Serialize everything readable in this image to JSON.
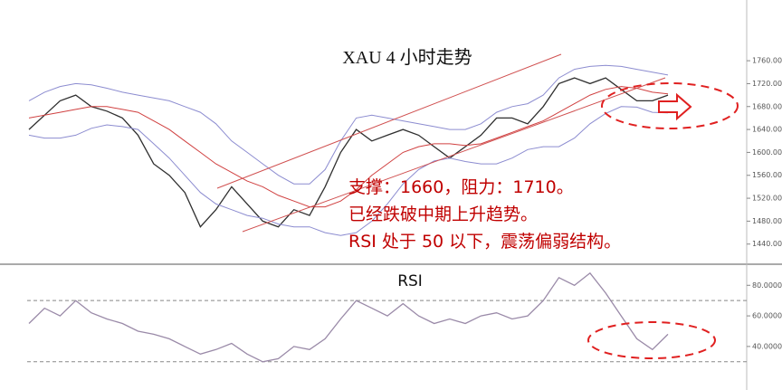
{
  "chart_data": [
    {
      "type": "line",
      "title": "XAU 4 小时走势",
      "annotations": [
        "支撑：1660，阻力：1710。",
        "已经跌破中期上升趋势。",
        "RSI 处于 50 以下，震荡偏弱结构。"
      ],
      "ylim": [
        1408,
        1787
      ],
      "yticks": [
        {
          "value": 1760,
          "label": "1760.00"
        },
        {
          "value": 1720,
          "label": "1720.00"
        },
        {
          "value": 1680,
          "label": "1680.00"
        },
        {
          "value": 1640,
          "label": "1640.00"
        },
        {
          "value": 1600,
          "label": "1600.00"
        },
        {
          "value": 1560,
          "label": "1560.00"
        },
        {
          "value": 1520,
          "label": "1520.00"
        },
        {
          "value": 1480,
          "label": "1480.00"
        },
        {
          "value": 1440,
          "label": "1440.00"
        }
      ],
      "series": [
        {
          "color": "#2f2f2f",
          "values": [
            1640,
            1665,
            1690,
            1700,
            1680,
            1672,
            1660,
            1630,
            1580,
            1560,
            1530,
            1470,
            1500,
            1540,
            1510,
            1480,
            1470,
            1500,
            1490,
            1540,
            1600,
            1640,
            1620,
            1630,
            1640,
            1630,
            1610,
            1590,
            1610,
            1630,
            1660,
            1660,
            1650,
            1680,
            1720,
            1730,
            1720,
            1730,
            1710,
            1690,
            1690,
            1700
          ]
        },
        {
          "color": "#d04040",
          "values": [
            1660,
            1665,
            1670,
            1675,
            1680,
            1680,
            1675,
            1670,
            1655,
            1640,
            1620,
            1600,
            1580,
            1565,
            1550,
            1540,
            1525,
            1515,
            1505,
            1505,
            1515,
            1535,
            1560,
            1580,
            1600,
            1610,
            1615,
            1615,
            1612,
            1615,
            1625,
            1635,
            1645,
            1655,
            1670,
            1685,
            1700,
            1710,
            1715,
            1712,
            1705,
            1702
          ]
        },
        {
          "color": "#8c8cd0",
          "values": [
            1690,
            1705,
            1715,
            1720,
            1718,
            1712,
            1705,
            1700,
            1695,
            1690,
            1680,
            1670,
            1650,
            1620,
            1600,
            1580,
            1560,
            1545,
            1545,
            1570,
            1620,
            1660,
            1665,
            1660,
            1655,
            1650,
            1645,
            1640,
            1640,
            1650,
            1670,
            1680,
            1685,
            1700,
            1730,
            1745,
            1750,
            1752,
            1750,
            1745,
            1740,
            1735
          ]
        },
        {
          "color": "#8c8cd0",
          "values": [
            1630,
            1625,
            1625,
            1630,
            1642,
            1648,
            1645,
            1640,
            1615,
            1590,
            1560,
            1530,
            1510,
            1500,
            1490,
            1485,
            1475,
            1470,
            1470,
            1460,
            1455,
            1460,
            1480,
            1510,
            1545,
            1570,
            1585,
            1590,
            1584,
            1580,
            1580,
            1590,
            1605,
            1610,
            1610,
            1625,
            1650,
            1668,
            1680,
            1679,
            1670,
            1669
          ]
        }
      ]
    },
    {
      "type": "line",
      "title": "RSI",
      "ylim": [
        21,
        92
      ],
      "yticks": [
        {
          "value": 80,
          "label": "80.0000"
        },
        {
          "value": 60,
          "label": "60.0000"
        },
        {
          "value": 40,
          "label": "40.0000"
        }
      ],
      "hlines": [
        70,
        30
      ],
      "series": [
        {
          "color": "#9a8aa8",
          "values": [
            55,
            65,
            60,
            70,
            62,
            58,
            55,
            50,
            48,
            45,
            40,
            35,
            38,
            42,
            35,
            30,
            32,
            40,
            38,
            45,
            58,
            70,
            65,
            60,
            68,
            60,
            55,
            58,
            55,
            60,
            62,
            58,
            60,
            70,
            85,
            80,
            88,
            75,
            60,
            45,
            38,
            48
          ]
        }
      ]
    }
  ]
}
